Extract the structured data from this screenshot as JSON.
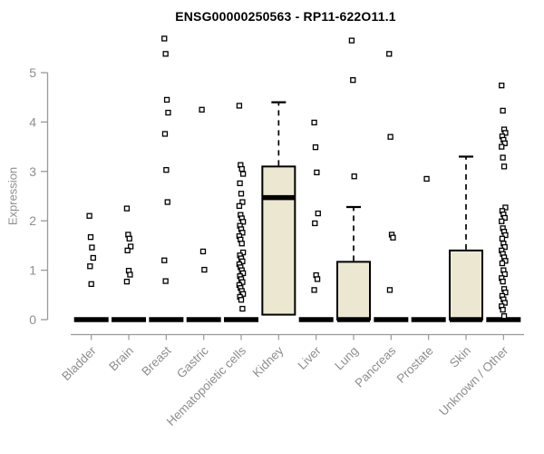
{
  "title": "ENSG00000250563 - RP11-622O11.1",
  "chart_data": {
    "type": "boxplot",
    "title": "ENSG00000250563 - RP11-622O11.1",
    "xlabel": "",
    "ylabel": "Expression",
    "ylim": [
      0,
      5.8
    ],
    "yticks": [
      0,
      1,
      2,
      3,
      4,
      5
    ],
    "grid": false,
    "legend": false,
    "categories": [
      "Bladder",
      "Brain",
      "Breast",
      "Gastric",
      "Hematopoietic cells",
      "Kidney",
      "Liver",
      "Lung",
      "Pancreas",
      "Prostate",
      "Skin",
      "Unknown / Other"
    ],
    "series": [
      {
        "name": "Bladder",
        "box": {
          "low": 0,
          "q1": 0,
          "median": 0,
          "q3": 0,
          "high": 0
        },
        "outliers": [
          2.1,
          1.67,
          1.46,
          1.25,
          1.08,
          0.72
        ]
      },
      {
        "name": "Brain",
        "box": {
          "low": 0,
          "q1": 0,
          "median": 0,
          "q3": 0,
          "high": 0
        },
        "outliers": [
          2.25,
          1.72,
          1.64,
          1.48,
          1.4,
          0.99,
          0.91,
          0.77
        ]
      },
      {
        "name": "Breast",
        "box": {
          "low": 0,
          "q1": 0,
          "median": 0,
          "q3": 0,
          "high": 0
        },
        "outliers": [
          5.69,
          5.38,
          4.45,
          4.19,
          3.76,
          3.03,
          2.38,
          1.2,
          0.78
        ]
      },
      {
        "name": "Gastric",
        "box": {
          "low": 0,
          "q1": 0,
          "median": 0,
          "q3": 0,
          "high": 0
        },
        "outliers": [
          4.25,
          1.38,
          1.01
        ]
      },
      {
        "name": "Hematopoietic cells",
        "box": {
          "low": 0,
          "q1": 0,
          "median": 0,
          "q3": 0,
          "high": 0
        },
        "outliers": [
          4.33,
          3.13,
          3.05,
          2.95,
          2.76,
          2.55,
          2.38,
          2.3,
          2.12,
          2.05,
          1.98,
          1.9,
          1.83,
          1.76,
          1.69,
          1.62,
          1.54,
          1.36,
          1.3,
          1.24,
          1.18,
          1.12,
          1.06,
          1.0,
          0.94,
          0.88,
          0.82,
          0.76,
          0.7,
          0.64,
          0.58,
          0.52,
          0.46,
          0.4,
          0.22
        ]
      },
      {
        "name": "Kidney",
        "box": {
          "low": 0.1,
          "q1": 0.1,
          "median": 2.47,
          "q3": 3.1,
          "high": 4.4
        },
        "outliers": []
      },
      {
        "name": "Liver",
        "box": {
          "low": 0,
          "q1": 0,
          "median": 0,
          "q3": 0,
          "high": 0
        },
        "outliers": [
          3.99,
          3.49,
          2.98,
          2.15,
          1.95,
          0.9,
          0.82,
          0.6
        ]
      },
      {
        "name": "Lung",
        "box": {
          "low": 0,
          "q1": 0,
          "median": 0,
          "q3": 1.17,
          "high": 2.28
        },
        "outliers": [
          5.65,
          4.85,
          2.9
        ]
      },
      {
        "name": "Pancreas",
        "box": {
          "low": 0,
          "q1": 0,
          "median": 0,
          "q3": 0,
          "high": 0
        },
        "outliers": [
          5.38,
          3.7,
          1.72,
          1.66,
          0.6
        ]
      },
      {
        "name": "Prostate",
        "box": {
          "low": 0,
          "q1": 0,
          "median": 0,
          "q3": 0,
          "high": 0
        },
        "outliers": [
          2.85
        ]
      },
      {
        "name": "Skin",
        "box": {
          "low": 0,
          "q1": 0,
          "median": 0,
          "q3": 1.4,
          "high": 3.3
        },
        "outliers": []
      },
      {
        "name": "Unknown / Other",
        "box": {
          "low": 0,
          "q1": 0,
          "median": 0,
          "q3": 0,
          "high": 0
        },
        "outliers": [
          4.74,
          4.23,
          3.85,
          3.78,
          3.71,
          3.64,
          3.57,
          3.5,
          3.28,
          3.1,
          2.27,
          2.2,
          2.13,
          2.06,
          1.99,
          1.85,
          1.78,
          1.71,
          1.64,
          1.54,
          1.47,
          1.4,
          1.33,
          1.26,
          1.19,
          1.14,
          1.0,
          0.92,
          0.84,
          0.77,
          0.62,
          0.55,
          0.48,
          0.41,
          0.34,
          0.27,
          0.2,
          0.07
        ]
      }
    ],
    "style": {
      "box_fill": "#ECE7D1",
      "box_stroke": "#000000",
      "median_color": "#000000",
      "outlier_stroke": "#000000",
      "axis_color": "#999999",
      "label_color": "#8E8E8E",
      "title_color": "#000000",
      "background": "#FFFFFF"
    }
  }
}
